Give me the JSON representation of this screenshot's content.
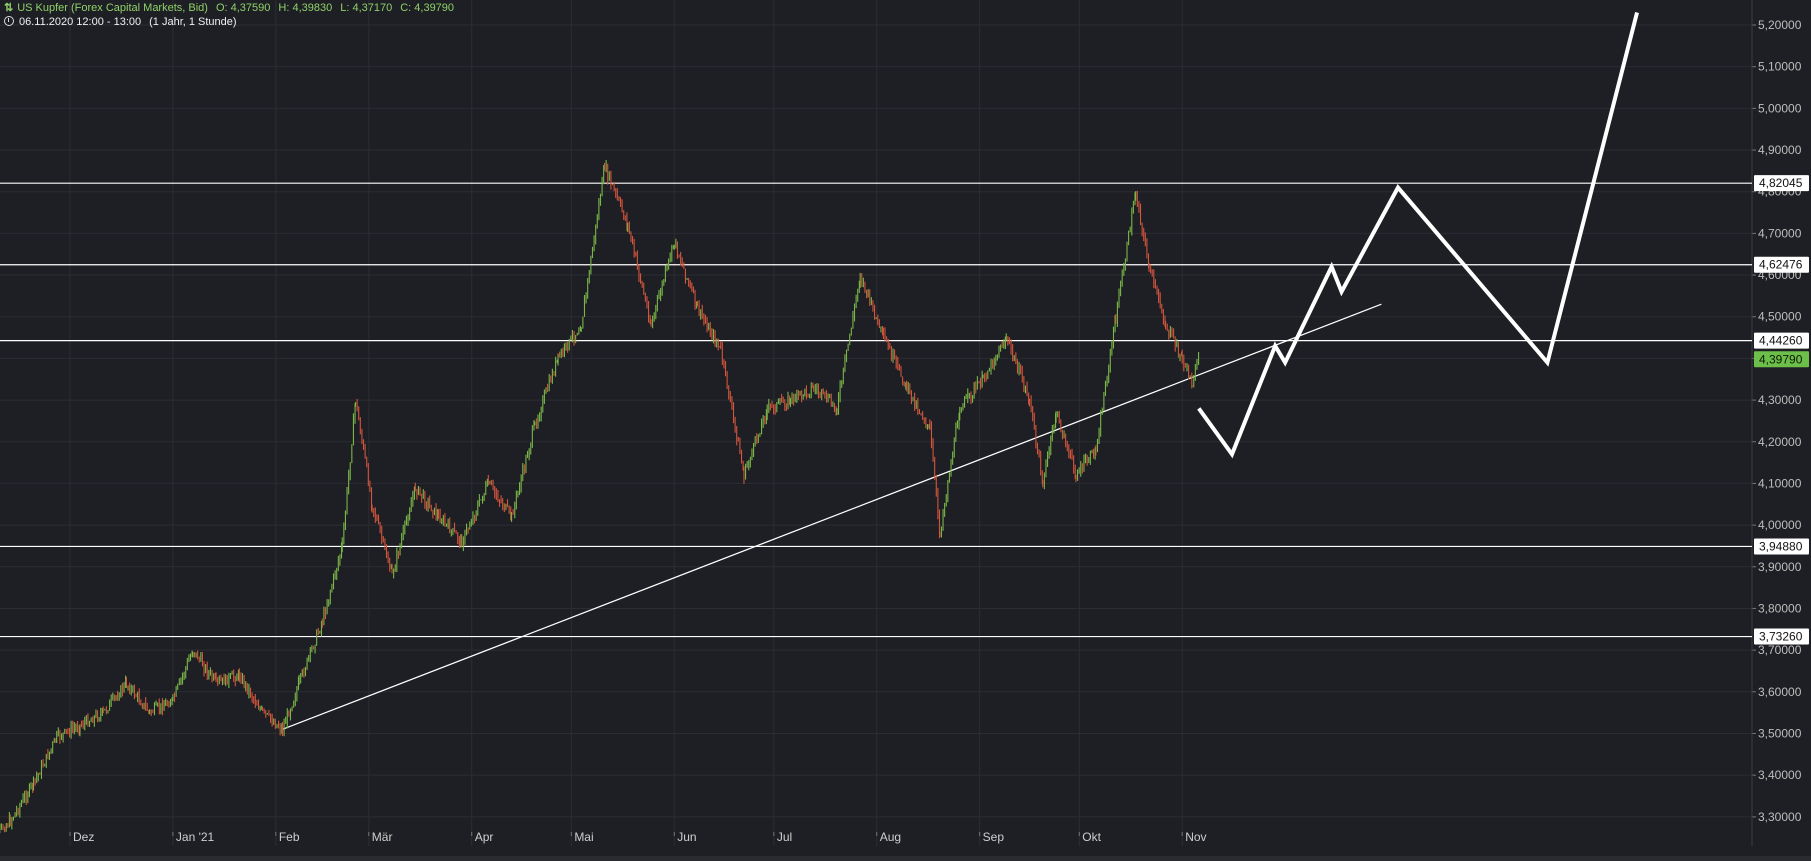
{
  "header": {
    "instrument": "US Kupfer (Forex Capital Markets, Bid)",
    "open": "O: 4,37590",
    "high": "H: 4,39830",
    "low": "L: 4,37170",
    "close": "C: 4,39790",
    "period": "06.11.2020 12:00 - 13:00",
    "timeframe": "(1 Jahr, 1 Stunde)"
  },
  "colors": {
    "background": "#1e1f24",
    "grid": "#2b2d33",
    "up": "#7ab648",
    "down": "#d2553c",
    "annotation": "#ffffff",
    "current_price_badge": "#6cc04a"
  },
  "chart_data": {
    "type": "line",
    "title": "US Kupfer (Forex Capital Markets, Bid)",
    "xlabel": "",
    "ylabel": "",
    "ylim": [
      3.23,
      5.26
    ],
    "x_ticks": [
      {
        "label": "Dez",
        "date": "2020-12-01"
      },
      {
        "label": "Jan '21",
        "date": "2021-01-01"
      },
      {
        "label": "Feb",
        "date": "2021-02-01"
      },
      {
        "label": "Mär",
        "date": "2021-03-01"
      },
      {
        "label": "Apr",
        "date": "2021-04-01"
      },
      {
        "label": "Mai",
        "date": "2021-05-01"
      },
      {
        "label": "Jun",
        "date": "2021-06-01"
      },
      {
        "label": "Jul",
        "date": "2021-07-01"
      },
      {
        "label": "Aug",
        "date": "2021-08-01"
      },
      {
        "label": "Sep",
        "date": "2021-09-01"
      },
      {
        "label": "Okt",
        "date": "2021-10-01"
      },
      {
        "label": "Nov",
        "date": "2021-11-01"
      }
    ],
    "y_ticks": [
      "3,30000",
      "3,40000",
      "3,50000",
      "3,60000",
      "3,70000",
      "3,80000",
      "3,90000",
      "4,00000",
      "4,10000",
      "4,20000",
      "4,30000",
      "4,40000",
      "4,50000",
      "4,60000",
      "4,70000",
      "4,80000",
      "4,90000",
      "5,00000",
      "5,10000",
      "5,20000"
    ],
    "series": [
      {
        "values": [
          {
            "date": "2020-11-06",
            "value": 3.24
          },
          {
            "date": "2020-11-13",
            "value": 3.29
          },
          {
            "date": "2020-11-20",
            "value": 3.38
          },
          {
            "date": "2020-11-27",
            "value": 3.49
          },
          {
            "date": "2020-12-04",
            "value": 3.52
          },
          {
            "date": "2020-12-11",
            "value": 3.55
          },
          {
            "date": "2020-12-18",
            "value": 3.62
          },
          {
            "date": "2020-12-25",
            "value": 3.55
          },
          {
            "date": "2021-01-01",
            "value": 3.58
          },
          {
            "date": "2021-01-07",
            "value": 3.7
          },
          {
            "date": "2021-01-14",
            "value": 3.62
          },
          {
            "date": "2021-01-21",
            "value": 3.64
          },
          {
            "date": "2021-01-28",
            "value": 3.55
          },
          {
            "date": "2021-02-03",
            "value": 3.51
          },
          {
            "date": "2021-02-08",
            "value": 3.62
          },
          {
            "date": "2021-02-15",
            "value": 3.77
          },
          {
            "date": "2021-02-21",
            "value": 3.95
          },
          {
            "date": "2021-02-25",
            "value": 4.3
          },
          {
            "date": "2021-03-02",
            "value": 4.05
          },
          {
            "date": "2021-03-08",
            "value": 3.88
          },
          {
            "date": "2021-03-15",
            "value": 4.09
          },
          {
            "date": "2021-03-22",
            "value": 4.02
          },
          {
            "date": "2021-03-29",
            "value": 3.96
          },
          {
            "date": "2021-04-06",
            "value": 4.1
          },
          {
            "date": "2021-04-13",
            "value": 4.02
          },
          {
            "date": "2021-04-20",
            "value": 4.24
          },
          {
            "date": "2021-04-27",
            "value": 4.4
          },
          {
            "date": "2021-05-04",
            "value": 4.48
          },
          {
            "date": "2021-05-11",
            "value": 4.86
          },
          {
            "date": "2021-05-18",
            "value": 4.72
          },
          {
            "date": "2021-05-25",
            "value": 4.48
          },
          {
            "date": "2021-06-01",
            "value": 4.68
          },
          {
            "date": "2021-06-08",
            "value": 4.52
          },
          {
            "date": "2021-06-15",
            "value": 4.42
          },
          {
            "date": "2021-06-22",
            "value": 4.12
          },
          {
            "date": "2021-06-29",
            "value": 4.28
          },
          {
            "date": "2021-07-06",
            "value": 4.3
          },
          {
            "date": "2021-07-13",
            "value": 4.33
          },
          {
            "date": "2021-07-20",
            "value": 4.28
          },
          {
            "date": "2021-07-27",
            "value": 4.6
          },
          {
            "date": "2021-08-03",
            "value": 4.45
          },
          {
            "date": "2021-08-10",
            "value": 4.33
          },
          {
            "date": "2021-08-17",
            "value": 4.23
          },
          {
            "date": "2021-08-20",
            "value": 3.98
          },
          {
            "date": "2021-08-26",
            "value": 4.28
          },
          {
            "date": "2021-09-02",
            "value": 4.35
          },
          {
            "date": "2021-09-09",
            "value": 4.45
          },
          {
            "date": "2021-09-16",
            "value": 4.3
          },
          {
            "date": "2021-09-20",
            "value": 4.1
          },
          {
            "date": "2021-09-24",
            "value": 4.27
          },
          {
            "date": "2021-09-30",
            "value": 4.12
          },
          {
            "date": "2021-10-06",
            "value": 4.18
          },
          {
            "date": "2021-10-12",
            "value": 4.5
          },
          {
            "date": "2021-10-18",
            "value": 4.8
          },
          {
            "date": "2021-10-22",
            "value": 4.62
          },
          {
            "date": "2021-10-27",
            "value": 4.48
          },
          {
            "date": "2021-11-01",
            "value": 4.4
          },
          {
            "date": "2021-11-04",
            "value": 4.34
          },
          {
            "date": "2021-11-06",
            "value": 4.4
          }
        ]
      }
    ],
    "horizontal_levels": [
      {
        "label": "4,82045",
        "value": 4.82045
      },
      {
        "label": "4,62476",
        "value": 4.62476
      },
      {
        "label": "4,44260",
        "value": 4.4426
      },
      {
        "label": "3,94880",
        "value": 3.9488
      },
      {
        "label": "3,73260",
        "value": 3.7326
      }
    ],
    "current_price": {
      "label": "4,39790",
      "value": 4.3979
    },
    "trendline": [
      {
        "date": "2021-02-03",
        "value": 3.51
      },
      {
        "date": "2021-12-31",
        "value": 4.53
      }
    ],
    "projection": [
      {
        "date": "2021-11-06",
        "value": 4.28
      },
      {
        "date": "2021-11-16",
        "value": 4.17
      },
      {
        "date": "2021-11-29",
        "value": 4.43
      },
      {
        "date": "2021-12-02",
        "value": 4.39
      },
      {
        "date": "2021-12-16",
        "value": 4.62
      },
      {
        "date": "2021-12-19",
        "value": 4.56
      },
      {
        "date": "2022-01-05",
        "value": 4.81
      },
      {
        "date": "2022-02-19",
        "value": 4.39
      },
      {
        "date": "2022-03-18",
        "value": 5.23
      }
    ]
  }
}
